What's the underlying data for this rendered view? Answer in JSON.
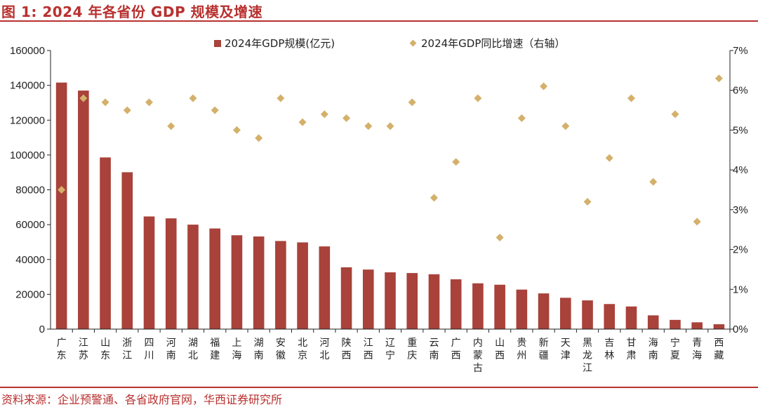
{
  "figure": {
    "title": "图 1:  2024 年各省份 GDP 规模及增速",
    "source": "资料来源：企业预警通、各省政府官网，华西证券研究所"
  },
  "colors": {
    "bar": "#a8423a",
    "marker": "#d4b06a",
    "rule": "#b8312f",
    "axis": "#222222"
  },
  "chart_data": {
    "type": "bar",
    "categories": [
      "广东",
      "江苏",
      "山东",
      "浙江",
      "四川",
      "河南",
      "湖北",
      "福建",
      "上海",
      "湖南",
      "安徽",
      "北京",
      "河北",
      "陕西",
      "江西",
      "辽宁",
      "重庆",
      "云南",
      "广西",
      "内蒙古",
      "山西",
      "贵州",
      "新疆",
      "天津",
      "黑龙江",
      "吉林",
      "甘肃",
      "海南",
      "宁夏",
      "青海",
      "西藏"
    ],
    "series": [
      {
        "name": "2024年GDP规模(亿元)",
        "type": "bar",
        "axis": "left",
        "values": [
          141600,
          137000,
          98600,
          90100,
          64700,
          63600,
          60000,
          57800,
          53900,
          53200,
          50600,
          49800,
          47500,
          35500,
          34200,
          32600,
          32200,
          31500,
          28600,
          26300,
          25500,
          22700,
          20500,
          18000,
          16500,
          14400,
          13000,
          7900,
          5300,
          3900,
          2800
        ]
      },
      {
        "name": "2024年GDP同比增速（右轴）",
        "type": "scatter",
        "axis": "right",
        "values": [
          3.5,
          5.8,
          5.7,
          5.5,
          5.7,
          5.1,
          5.8,
          5.5,
          5.0,
          4.8,
          5.8,
          5.2,
          5.4,
          5.3,
          5.1,
          5.1,
          5.7,
          3.3,
          4.2,
          5.8,
          2.3,
          5.3,
          6.1,
          5.1,
          3.2,
          4.3,
          5.8,
          3.7,
          5.4,
          2.7,
          6.3
        ]
      }
    ],
    "y_left": {
      "min": 0,
      "max": 160000,
      "ticks": [
        "0",
        "20000",
        "40000",
        "60000",
        "80000",
        "100000",
        "120000",
        "140000",
        "160000"
      ]
    },
    "y_right": {
      "min": 0,
      "max": 7,
      "ticks": [
        "0%",
        "1%",
        "2%",
        "3%",
        "4%",
        "5%",
        "6%",
        "7%"
      ]
    },
    "grid": false,
    "legend": {
      "placement": "top-center",
      "items": [
        "2024年GDP规模(亿元)",
        "2024年GDP同比增速（右轴）"
      ]
    }
  }
}
